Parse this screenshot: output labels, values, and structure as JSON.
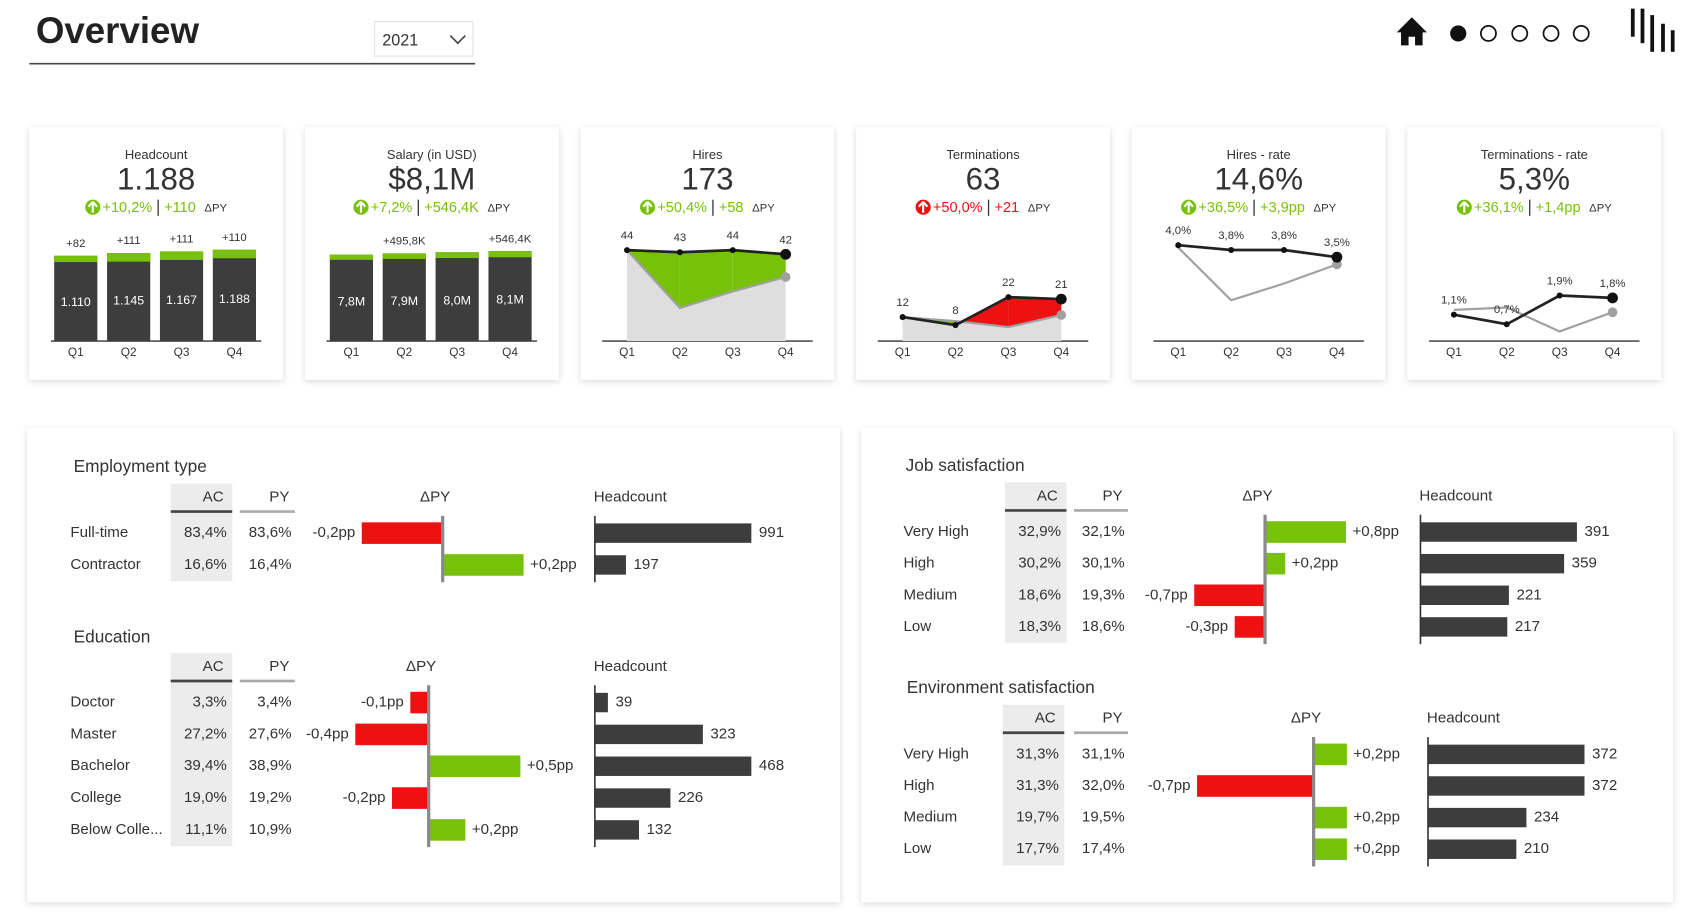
{
  "header": {
    "title": "Overview",
    "year": "2021"
  },
  "colors": {
    "good": "#78c10b",
    "bad": "#ee1111",
    "ac": "#3d3d3d",
    "py": "#a0a0a0",
    "py_area": "#dedede"
  },
  "kpis": [
    {
      "title": "Headcount",
      "value": "1.188",
      "change_pct": "+10,2%",
      "change_abs": "+110",
      "change_label": "ΔPY",
      "status": "good",
      "trend": "up",
      "chart": {
        "type": "bar",
        "categories": [
          "Q1",
          "Q2",
          "Q3",
          "Q4"
        ],
        "values": [
          1110,
          1145,
          1167,
          1188
        ],
        "value_labels": [
          "1.110",
          "1.145",
          "1.167",
          "1.188"
        ],
        "deltas": [
          82,
          111,
          111,
          110
        ],
        "delta_labels": [
          "+82",
          "+111",
          "+111",
          "+110"
        ],
        "ylim": [
          0,
          1560
        ]
      }
    },
    {
      "title": "Salary (in USD)",
      "value": "$8,1M",
      "change_pct": "+7,2%",
      "change_abs": "+546,4K",
      "change_label": "ΔPY",
      "status": "good",
      "trend": "up",
      "chart": {
        "type": "bar",
        "categories": [
          "Q1",
          "Q2",
          "Q3",
          "Q4"
        ],
        "values": [
          7800000,
          7900000,
          8000000,
          8100000
        ],
        "value_labels": [
          "7,8M",
          "7,9M",
          "8,0M",
          "8,1M"
        ],
        "deltas": [
          480000,
          495800,
          520000,
          546400
        ],
        "delta_labels": [
          null,
          "+495,8K",
          null,
          "+546,4K"
        ],
        "ylim": [
          0,
          10800000
        ]
      }
    },
    {
      "title": "Hires",
      "value": "173",
      "change_pct": "+50,4%",
      "change_abs": "+58",
      "change_label": "ΔPY",
      "status": "good",
      "trend": "up",
      "chart": {
        "type": "line",
        "categories": [
          "Q1",
          "Q2",
          "Q3",
          "Q4"
        ],
        "values": [
          44,
          43,
          44,
          42
        ],
        "py": [
          44,
          16,
          24,
          31
        ],
        "ylim": [
          0,
          58
        ],
        "higher_is_better": true,
        "py_area": true
      }
    },
    {
      "title": "Terminations",
      "value": "63",
      "change_pct": "+50,0%",
      "change_abs": "+21",
      "change_label": "ΔPY",
      "status": "bad",
      "trend": "up",
      "chart": {
        "type": "line",
        "categories": [
          "Q1",
          "Q2",
          "Q3",
          "Q4"
        ],
        "values": [
          12,
          8,
          22,
          21
        ],
        "py": [
          12,
          10,
          7,
          13
        ],
        "ylim": [
          0,
          60
        ],
        "higher_is_better": false,
        "py_area": true
      }
    },
    {
      "title": "Hires - rate",
      "value": "14,6%",
      "change_pct": "+36,5%",
      "change_abs": "+3,9pp",
      "change_label": "ΔPY",
      "status": "good",
      "trend": "up",
      "chart": {
        "type": "line",
        "categories": [
          "Q1",
          "Q2",
          "Q3",
          "Q4"
        ],
        "values": [
          4.0,
          3.8,
          3.8,
          3.5
        ],
        "value_labels": [
          "4,0%",
          "3,8%",
          "3,8%",
          "3,5%"
        ],
        "py": [
          3.9,
          1.7,
          2.4,
          3.2
        ],
        "ylim": [
          0,
          5
        ],
        "higher_is_better": true,
        "py_area": false
      }
    },
    {
      "title": "Terminations - rate",
      "value": "5,3%",
      "change_pct": "+36,1%",
      "change_abs": "+1,4pp",
      "change_label": "ΔPY",
      "status": "good",
      "trend": "up",
      "chart": {
        "type": "line",
        "categories": [
          "Q1",
          "Q2",
          "Q3",
          "Q4"
        ],
        "values": [
          1.1,
          0.7,
          1.9,
          1.8
        ],
        "value_labels": [
          "1,1%",
          "0,7%",
          "1,9%",
          "1,8%"
        ],
        "py": [
          1.3,
          1.4,
          0.4,
          1.2
        ],
        "ylim": [
          0,
          5
        ],
        "higher_is_better": false,
        "py_area": false
      }
    }
  ],
  "sections": [
    {
      "title": "Employment type",
      "columns": [
        "AC",
        "PY",
        "ΔPY",
        "Headcount"
      ],
      "rows": [
        {
          "label": "Full-time",
          "ac": "83,4%",
          "py": "83,6%",
          "delta": -0.2,
          "delta_label": "-0,2pp",
          "headcount": 991
        },
        {
          "label": "Contractor",
          "ac": "16,6%",
          "py": "16,4%",
          "delta": 0.2,
          "delta_label": "+0,2pp",
          "headcount": 197
        }
      ]
    },
    {
      "title": "Education",
      "columns": [
        "AC",
        "PY",
        "ΔPY",
        "Headcount"
      ],
      "rows": [
        {
          "label": "Doctor",
          "ac": "3,3%",
          "py": "3,4%",
          "delta": -0.1,
          "delta_label": "-0,1pp",
          "headcount": 39
        },
        {
          "label": "Master",
          "ac": "27,2%",
          "py": "27,6%",
          "delta": -0.4,
          "delta_label": "-0,4pp",
          "headcount": 323
        },
        {
          "label": "Bachelor",
          "ac": "39,4%",
          "py": "38,9%",
          "delta": 0.5,
          "delta_label": "+0,5pp",
          "headcount": 468
        },
        {
          "label": "College",
          "ac": "19,0%",
          "py": "19,2%",
          "delta": -0.2,
          "delta_label": "-0,2pp",
          "headcount": 226
        },
        {
          "label": "Below Colle...",
          "ac": "11,1%",
          "py": "10,9%",
          "delta": 0.2,
          "delta_label": "+0,2pp",
          "headcount": 132
        }
      ]
    },
    {
      "title": "Job satisfaction",
      "columns": [
        "AC",
        "PY",
        "ΔPY",
        "Headcount"
      ],
      "rows": [
        {
          "label": "Very High",
          "ac": "32,9%",
          "py": "32,1%",
          "delta": 0.8,
          "delta_label": "+0,8pp",
          "headcount": 391
        },
        {
          "label": "High",
          "ac": "30,2%",
          "py": "30,1%",
          "delta": 0.2,
          "delta_label": "+0,2pp",
          "headcount": 359
        },
        {
          "label": "Medium",
          "ac": "18,6%",
          "py": "19,3%",
          "delta": -0.7,
          "delta_label": "-0,7pp",
          "headcount": 221
        },
        {
          "label": "Low",
          "ac": "18,3%",
          "py": "18,6%",
          "delta": -0.3,
          "delta_label": "-0,3pp",
          "headcount": 217
        }
      ]
    },
    {
      "title": "Environment satisfaction",
      "columns": [
        "AC",
        "PY",
        "ΔPY",
        "Headcount"
      ],
      "rows": [
        {
          "label": "Very High",
          "ac": "31,3%",
          "py": "31,1%",
          "delta": 0.2,
          "delta_label": "+0,2pp",
          "headcount": 372
        },
        {
          "label": "High",
          "ac": "31,3%",
          "py": "32,0%",
          "delta": -0.7,
          "delta_label": "-0,7pp",
          "headcount": 372
        },
        {
          "label": "Medium",
          "ac": "19,7%",
          "py": "19,5%",
          "delta": 0.2,
          "delta_label": "+0,2pp",
          "headcount": 234
        },
        {
          "label": "Low",
          "ac": "17,7%",
          "py": "17,4%",
          "delta": 0.2,
          "delta_label": "+0,2pp",
          "headcount": 210
        }
      ]
    }
  ]
}
